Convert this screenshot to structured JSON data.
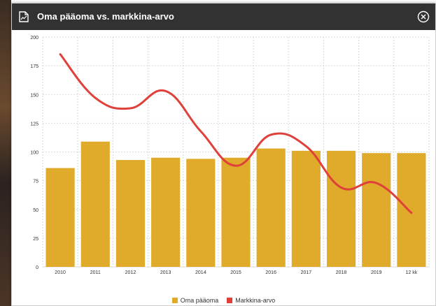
{
  "modal": {
    "title": "Oma pääoma vs. markkina-arvo",
    "icon": "document-icon",
    "close_icon": "close-circle-icon"
  },
  "colors": {
    "header_bg": "#323232",
    "bar": "#E0AA2B",
    "line": "#E0403A",
    "grid": "#d9d9d9"
  },
  "chart_data": {
    "type": "bar",
    "title": "Oma pääoma vs. markkina-arvo",
    "categories": [
      "2010",
      "2011",
      "2012",
      "2013",
      "2014",
      "2015",
      "2016",
      "2017",
      "2018",
      "2019",
      "12 kk"
    ],
    "yticks": [
      "0",
      "25",
      "50",
      "75",
      "100",
      "125",
      "150",
      "175",
      "200"
    ],
    "ylim": [
      0,
      200
    ],
    "grid": true,
    "legend_position": "bottom",
    "series": [
      {
        "name": "Oma pääoma",
        "type": "bar",
        "color": "#E0AA2B",
        "values": [
          86,
          109,
          93,
          95,
          94,
          95,
          103,
          101,
          101,
          99,
          99
        ]
      },
      {
        "name": "Markkina-arvo",
        "type": "line",
        "color": "#E0403A",
        "values": [
          185,
          147,
          138,
          153,
          118,
          88,
          115,
          105,
          69,
          73,
          47
        ]
      }
    ]
  }
}
